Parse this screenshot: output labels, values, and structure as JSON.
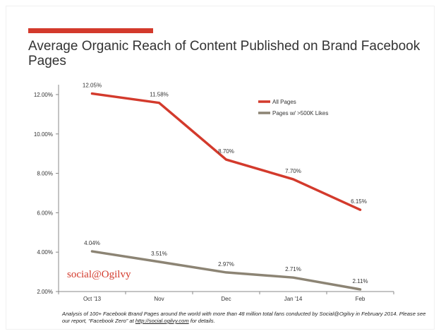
{
  "title": "Average Organic Reach of Content Published on Brand Facebook Pages",
  "logo_text": "social@Ogilvy",
  "footnote": {
    "text_before": "Analysis of 100+ Facebook Brand Pages around the world with more than 48 million total fans conducted by Social@Ogilvy in February 2014. Please see our report, “Facebook Zero” at ",
    "link": "http://social.ogilvy.com",
    "text_after": " for details."
  },
  "colors": {
    "accent": "#d33a2c",
    "all_pages": "#d33a2c",
    "pages_500k": "#8c8474",
    "axis": "#888888",
    "text": "#333333"
  },
  "chart_data": {
    "type": "line",
    "categories": [
      "Oct '13",
      "Nov",
      "Dec",
      "Jan '14",
      "Feb"
    ],
    "ylim": [
      2,
      12.5
    ],
    "yticks": [
      2,
      4,
      6,
      8,
      10,
      12
    ],
    "ytick_labels": [
      "2.00%",
      "4.00%",
      "6.00%",
      "8.00%",
      "10.00%",
      "12.00%"
    ],
    "legend_position": "top-right",
    "grid": false,
    "series": [
      {
        "name": "All Pages",
        "values": [
          12.05,
          11.58,
          8.7,
          7.7,
          6.15
        ],
        "labels": [
          "12.05%",
          "11.58%",
          "8.70%",
          "7.70%",
          "6.15%"
        ]
      },
      {
        "name": "Pages w/ >500K Likes",
        "values": [
          4.04,
          3.51,
          2.97,
          2.71,
          2.11
        ],
        "labels": [
          "4.04%",
          "3.51%",
          "2.97%",
          "2.71%",
          "2.11%"
        ]
      }
    ]
  }
}
